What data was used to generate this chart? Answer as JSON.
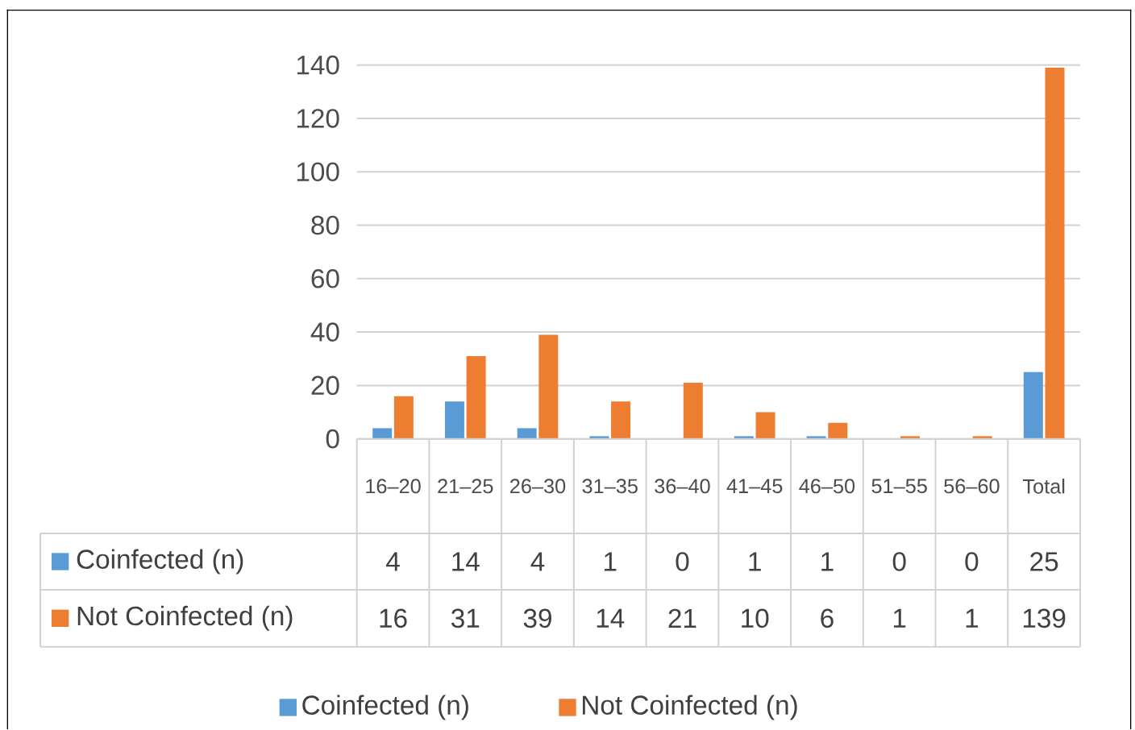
{
  "chart_data": {
    "type": "bar",
    "categories": [
      "16–20",
      "21–25",
      "26–30",
      "31–35",
      "36–40",
      "41–45",
      "46–50",
      "51–55",
      "56–60",
      "Total"
    ],
    "series": [
      {
        "name": "Coinfected (n)",
        "color": "#5b9bd5",
        "values": [
          4,
          14,
          4,
          1,
          0,
          1,
          1,
          0,
          0,
          25
        ]
      },
      {
        "name": "Not Coinfected (n)",
        "color": "#ed7d31",
        "values": [
          16,
          31,
          39,
          14,
          21,
          10,
          6,
          1,
          1,
          139
        ]
      }
    ],
    "ylim": [
      0,
      140
    ],
    "yticks": [
      0,
      20,
      40,
      60,
      80,
      100,
      120,
      140
    ],
    "grid": "y",
    "legend": "bottom",
    "data_labels": true
  }
}
